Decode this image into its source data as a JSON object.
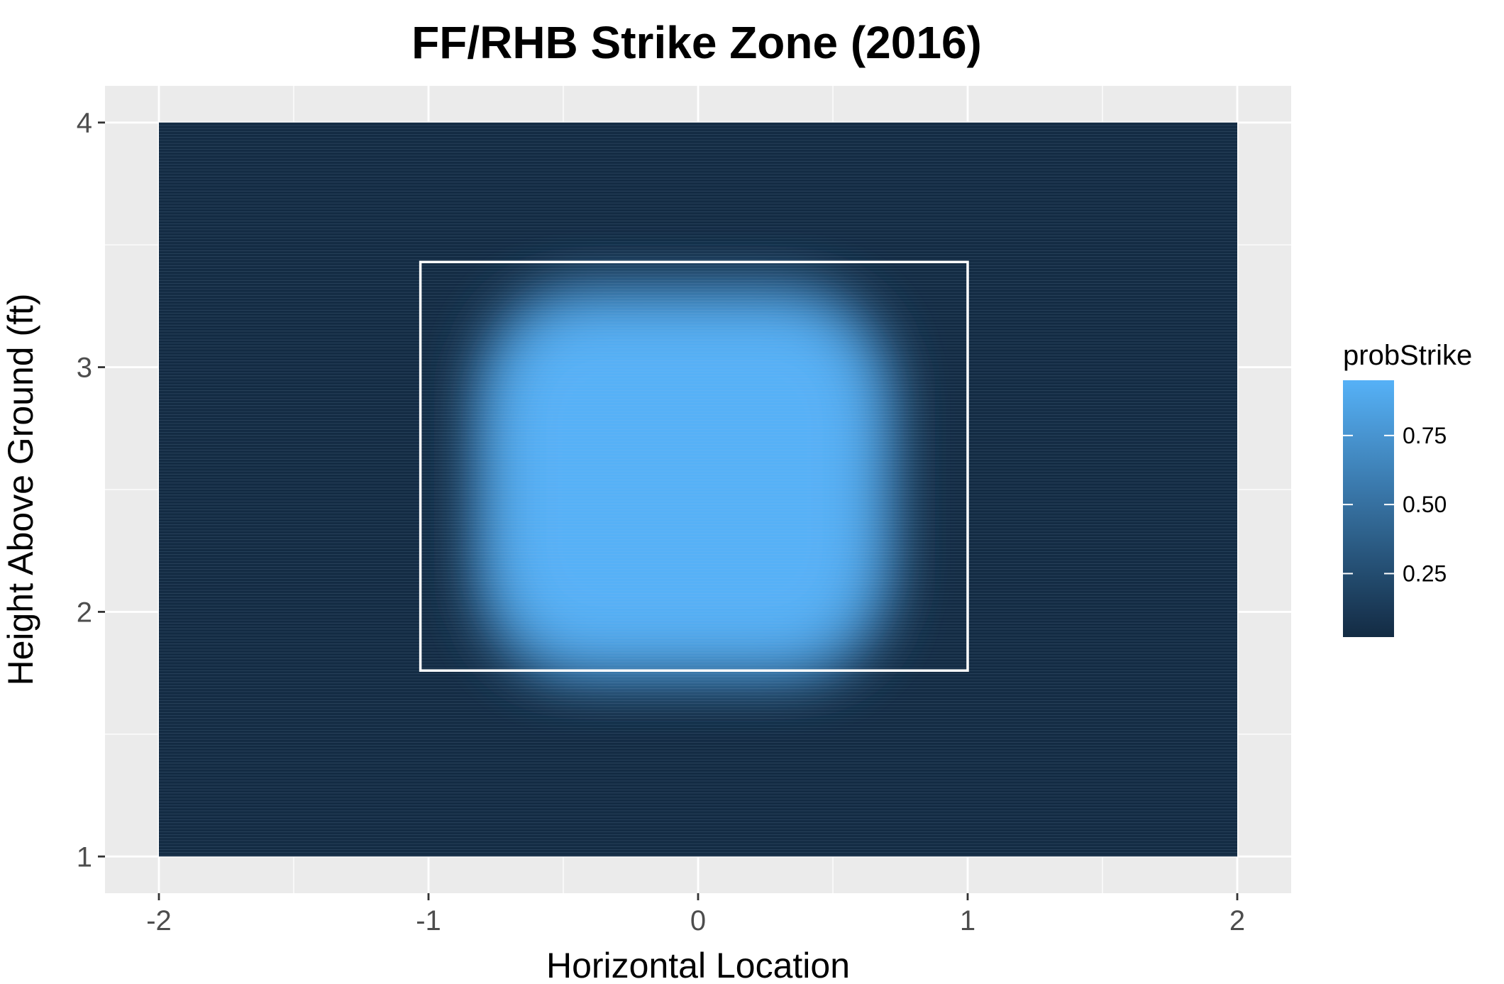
{
  "chart_data": {
    "type": "heatmap",
    "title": "FF/RHB Strike Zone (2016)",
    "xlabel": "Horizontal Location",
    "ylabel": "Height Above Ground (ft)",
    "xlim": [
      -2.2,
      2.2
    ],
    "ylim": [
      0.85,
      4.15
    ],
    "x_ticks": [
      -2,
      -1,
      0,
      1,
      2
    ],
    "x_tick_labels": [
      "-2",
      "-1",
      "0",
      "1",
      "2"
    ],
    "y_ticks": [
      1,
      2,
      3,
      4
    ],
    "y_tick_labels": [
      "1",
      "2",
      "3",
      "4"
    ],
    "grid": true,
    "heatmap_extent": {
      "x": [
        -2,
        2
      ],
      "y": [
        1,
        4
      ]
    },
    "strike_zone_box": {
      "x": [
        -1.03,
        1.0
      ],
      "y": [
        1.76,
        3.43
      ]
    },
    "high_probability_region": {
      "x": [
        -0.95,
        0.85
      ],
      "y": [
        1.55,
        3.5
      ],
      "peak_value": 0.95,
      "background_value": 0.02
    },
    "legend": {
      "title": "probStrike",
      "placement": "right",
      "range": [
        0.02,
        0.95
      ],
      "ticks": [
        0.25,
        0.5,
        0.75
      ],
      "tick_labels": [
        "0.25",
        "0.50",
        "0.75"
      ],
      "color_low": "#132B43",
      "color_high": "#56B1F7"
    },
    "colors": {
      "panel_background": "#ebebeb",
      "grid_line": "#ffffff",
      "zone_box": "#ffffff"
    }
  }
}
